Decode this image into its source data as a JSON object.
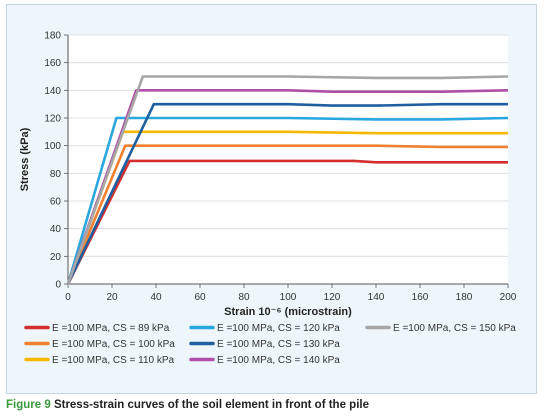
{
  "caption": {
    "figure_label": "Figure 9",
    "text": "Stress-strain curves of the soil element in front of the pile"
  },
  "chart_data": {
    "type": "line",
    "title": "",
    "xlabel": "Strain 10⁻⁶ (microstrain)",
    "ylabel": "Stress (kPa)",
    "xlim": [
      0,
      200
    ],
    "ylim": [
      0,
      180
    ],
    "xticks": [
      0,
      20,
      40,
      60,
      80,
      100,
      120,
      140,
      160,
      180,
      200
    ],
    "yticks": [
      0,
      20,
      40,
      60,
      80,
      100,
      120,
      140,
      160,
      180
    ],
    "grid": "horizontal",
    "legend_position": "bottom",
    "series": [
      {
        "name": "E =100 MPa, CS = 89 kPa",
        "color": "#d32f2f",
        "x": [
          0,
          28,
          60,
          100,
          130,
          140,
          170,
          200
        ],
        "y": [
          0,
          89,
          89,
          89,
          89,
          88,
          88,
          88
        ]
      },
      {
        "name": "E =100 MPa, CS = 100 kPa",
        "color": "#f08030",
        "x": [
          0,
          26,
          60,
          100,
          140,
          170,
          200
        ],
        "y": [
          0,
          100,
          100,
          100,
          100,
          99,
          99
        ]
      },
      {
        "name": "E =100 MPa, CS = 110 kPa",
        "color": "#f5b800",
        "x": [
          0,
          25,
          60,
          100,
          140,
          170,
          200
        ],
        "y": [
          0,
          110,
          110,
          110,
          109,
          109,
          109
        ]
      },
      {
        "name": "E =100 MPa, CS = 120 kPa",
        "color": "#29a8e0",
        "x": [
          0,
          22,
          60,
          100,
          140,
          170,
          200
        ],
        "y": [
          0,
          120,
          120,
          120,
          119,
          119,
          120
        ]
      },
      {
        "name": "E =100 MPa, CS = 130 kPa",
        "color": "#1f5fa0",
        "x": [
          0,
          39,
          60,
          100,
          120,
          140,
          170,
          200
        ],
        "y": [
          0,
          130,
          130,
          130,
          129,
          129,
          130,
          130
        ]
      },
      {
        "name": "E =100 MPa, CS = 140 kPa",
        "color": "#b04fa8",
        "x": [
          0,
          31,
          60,
          100,
          120,
          140,
          170,
          200
        ],
        "y": [
          0,
          140,
          140,
          140,
          139,
          139,
          139,
          140
        ]
      },
      {
        "name": "E =100 MPa, CS = 150 kPa",
        "color": "#a6a6a6",
        "x": [
          0,
          34,
          60,
          100,
          140,
          170,
          200
        ],
        "y": [
          0,
          150,
          150,
          150,
          149,
          149,
          150
        ]
      }
    ]
  }
}
